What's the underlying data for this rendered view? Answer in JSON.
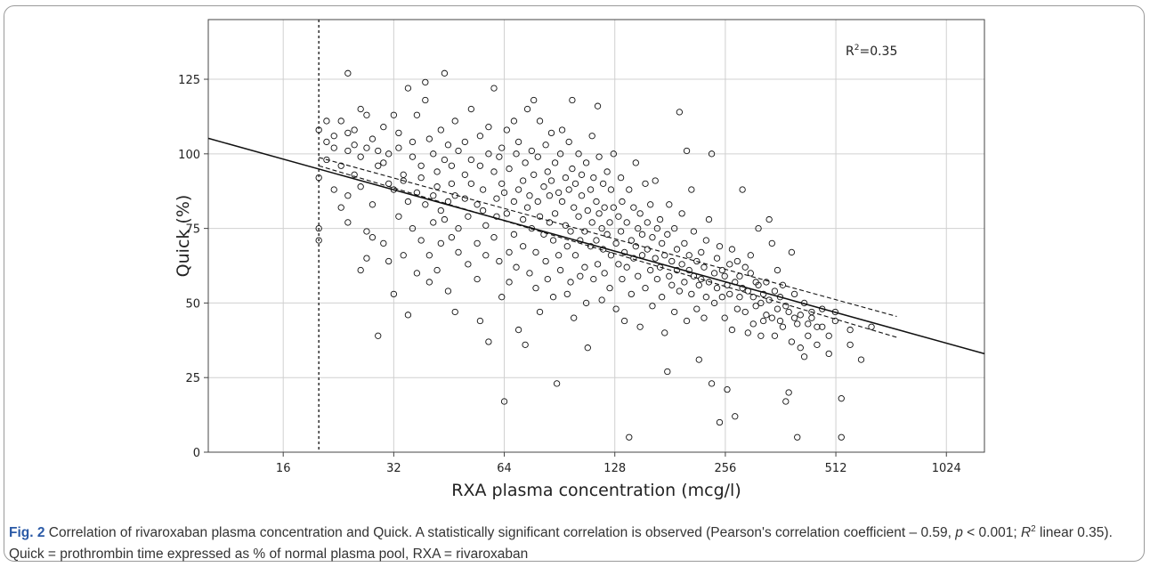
{
  "chart_data": {
    "type": "scatter",
    "xlabel": "RXA plasma concentration (mcg/l)",
    "ylabel": "Quick (%)",
    "x_scale": "log2",
    "xlim": [
      10,
      1300
    ],
    "ylim": [
      0,
      145
    ],
    "x_ticks": [
      16,
      32,
      64,
      128,
      256,
      512,
      1024
    ],
    "y_ticks": [
      0,
      25,
      50,
      75,
      100,
      125
    ],
    "grid": true,
    "annotation": "R² = 0.35",
    "threshold_line_x": 20,
    "regression": {
      "fit": [
        [
          10,
          105.2
        ],
        [
          1300,
          33.0
        ]
      ],
      "ci_upper": [
        [
          20,
          98.8
        ],
        [
          750,
          45.5
        ]
      ],
      "ci_lower": [
        [
          20,
          96.0
        ],
        [
          750,
          38.5
        ]
      ]
    },
    "points": [
      [
        20,
        108
      ],
      [
        20,
        92
      ],
      [
        20,
        75
      ],
      [
        20,
        71
      ],
      [
        21,
        104
      ],
      [
        21,
        98
      ],
      [
        21,
        111
      ],
      [
        22,
        102
      ],
      [
        22,
        106
      ],
      [
        22,
        88
      ],
      [
        23,
        111
      ],
      [
        23,
        96
      ],
      [
        23,
        82
      ],
      [
        24,
        107
      ],
      [
        24,
        127
      ],
      [
        24,
        101
      ],
      [
        24,
        86
      ],
      [
        24,
        77
      ],
      [
        25,
        103
      ],
      [
        25,
        93
      ],
      [
        25,
        108
      ],
      [
        26,
        99
      ],
      [
        26,
        89
      ],
      [
        26,
        61
      ],
      [
        26,
        115
      ],
      [
        27,
        113
      ],
      [
        27,
        102
      ],
      [
        27,
        74
      ],
      [
        27,
        65
      ],
      [
        28,
        105
      ],
      [
        28,
        83
      ],
      [
        28,
        72
      ],
      [
        29,
        39
      ],
      [
        29,
        96
      ],
      [
        29,
        101
      ],
      [
        30,
        109
      ],
      [
        30,
        97
      ],
      [
        30,
        70
      ],
      [
        31,
        90
      ],
      [
        31,
        100
      ],
      [
        31,
        64
      ],
      [
        32,
        113
      ],
      [
        32,
        88
      ],
      [
        32,
        53
      ],
      [
        33,
        102
      ],
      [
        33,
        79
      ],
      [
        33,
        107
      ],
      [
        34,
        93
      ],
      [
        34,
        66
      ],
      [
        34,
        91
      ],
      [
        35,
        122
      ],
      [
        35,
        84
      ],
      [
        35,
        46
      ],
      [
        36,
        99
      ],
      [
        36,
        75
      ],
      [
        36,
        104
      ],
      [
        37,
        87
      ],
      [
        37,
        60
      ],
      [
        37,
        113
      ],
      [
        38,
        96
      ],
      [
        38,
        92
      ],
      [
        38,
        71
      ],
      [
        39,
        124
      ],
      [
        39,
        118
      ],
      [
        39,
        83
      ],
      [
        40,
        105
      ],
      [
        40,
        66
      ],
      [
        40,
        57
      ],
      [
        41,
        86
      ],
      [
        41,
        100
      ],
      [
        41,
        77
      ],
      [
        42,
        61
      ],
      [
        42,
        89
      ],
      [
        42,
        94
      ],
      [
        43,
        108
      ],
      [
        43,
        81
      ],
      [
        43,
        70
      ],
      [
        44,
        127
      ],
      [
        44,
        98
      ],
      [
        44,
        78
      ],
      [
        45,
        103
      ],
      [
        45,
        84
      ],
      [
        45,
        54
      ],
      [
        46,
        90
      ],
      [
        46,
        96
      ],
      [
        46,
        72
      ],
      [
        47,
        47
      ],
      [
        47,
        111
      ],
      [
        47,
        86
      ],
      [
        48,
        101
      ],
      [
        48,
        75
      ],
      [
        48,
        67
      ],
      [
        50,
        93
      ],
      [
        50,
        85
      ],
      [
        50,
        104
      ],
      [
        51,
        63
      ],
      [
        51,
        79
      ],
      [
        52,
        115
      ],
      [
        52,
        90
      ],
      [
        52,
        98
      ],
      [
        54,
        70
      ],
      [
        54,
        83
      ],
      [
        54,
        58
      ],
      [
        55,
        106
      ],
      [
        55,
        96
      ],
      [
        55,
        44
      ],
      [
        56,
        81
      ],
      [
        56,
        88
      ],
      [
        57,
        76
      ],
      [
        57,
        66
      ],
      [
        58,
        100
      ],
      [
        58,
        109
      ],
      [
        58,
        37
      ],
      [
        60,
        122
      ],
      [
        60,
        94
      ],
      [
        60,
        72
      ],
      [
        61,
        85
      ],
      [
        61,
        79
      ],
      [
        62,
        64
      ],
      [
        62,
        99
      ],
      [
        63,
        102
      ],
      [
        63,
        90
      ],
      [
        63,
        52
      ],
      [
        64,
        17
      ],
      [
        64,
        87
      ],
      [
        65,
        80
      ],
      [
        65,
        108
      ],
      [
        66,
        67
      ],
      [
        66,
        95
      ],
      [
        66,
        57
      ],
      [
        68,
        111
      ],
      [
        68,
        84
      ],
      [
        68,
        73
      ],
      [
        69,
        100
      ],
      [
        69,
        62
      ],
      [
        70,
        88
      ],
      [
        70,
        104
      ],
      [
        70,
        41
      ],
      [
        72,
        91
      ],
      [
        72,
        78
      ],
      [
        72,
        69
      ],
      [
        73,
        36
      ],
      [
        73,
        97
      ],
      [
        74,
        115
      ],
      [
        74,
        82
      ],
      [
        75,
        86
      ],
      [
        75,
        60
      ],
      [
        76,
        101
      ],
      [
        76,
        75
      ],
      [
        77,
        118
      ],
      [
        77,
        93
      ],
      [
        78,
        67
      ],
      [
        78,
        55
      ],
      [
        79,
        84
      ],
      [
        79,
        99
      ],
      [
        80,
        111
      ],
      [
        80,
        79
      ],
      [
        80,
        47
      ],
      [
        82,
        89
      ],
      [
        82,
        73
      ],
      [
        83,
        103
      ],
      [
        83,
        64
      ],
      [
        84,
        94
      ],
      [
        84,
        58
      ],
      [
        85,
        86
      ],
      [
        85,
        77
      ],
      [
        86,
        107
      ],
      [
        86,
        91
      ],
      [
        87,
        71
      ],
      [
        87,
        52
      ],
      [
        88,
        80
      ],
      [
        88,
        97
      ],
      [
        89,
        23
      ],
      [
        90,
        87
      ],
      [
        90,
        66
      ],
      [
        91,
        100
      ],
      [
        91,
        61
      ],
      [
        92,
        84
      ],
      [
        92,
        108
      ],
      [
        94,
        76
      ],
      [
        94,
        92
      ],
      [
        95,
        69
      ],
      [
        95,
        53
      ],
      [
        96,
        88
      ],
      [
        96,
        104
      ],
      [
        97,
        74
      ],
      [
        97,
        57
      ],
      [
        98,
        95
      ],
      [
        98,
        118
      ],
      [
        99,
        82
      ],
      [
        99,
        45
      ],
      [
        100,
        90
      ],
      [
        100,
        66
      ],
      [
        102,
        79
      ],
      [
        102,
        100
      ],
      [
        103,
        71
      ],
      [
        103,
        59
      ],
      [
        104,
        86
      ],
      [
        104,
        93
      ],
      [
        106,
        74
      ],
      [
        106,
        62
      ],
      [
        107,
        97
      ],
      [
        107,
        50
      ],
      [
        108,
        81
      ],
      [
        108,
        35
      ],
      [
        110,
        88
      ],
      [
        110,
        69
      ],
      [
        111,
        106
      ],
      [
        111,
        77
      ],
      [
        112,
        58
      ],
      [
        112,
        92
      ],
      [
        114,
        84
      ],
      [
        114,
        71
      ],
      [
        115,
        116
      ],
      [
        115,
        63
      ],
      [
        116,
        80
      ],
      [
        116,
        99
      ],
      [
        118,
        75
      ],
      [
        118,
        51
      ],
      [
        119,
        90
      ],
      [
        119,
        68
      ],
      [
        120,
        82
      ],
      [
        120,
        60
      ],
      [
        122,
        94
      ],
      [
        122,
        73
      ],
      [
        124,
        77
      ],
      [
        124,
        55
      ],
      [
        125,
        88
      ],
      [
        125,
        66
      ],
      [
        127,
        82
      ],
      [
        127,
        100
      ],
      [
        129,
        70
      ],
      [
        129,
        48
      ],
      [
        131,
        79
      ],
      [
        131,
        63
      ],
      [
        133,
        74
      ],
      [
        133,
        92
      ],
      [
        134,
        58
      ],
      [
        134,
        84
      ],
      [
        136,
        67
      ],
      [
        136,
        44
      ],
      [
        138,
        77
      ],
      [
        138,
        62
      ],
      [
        140,
        5
      ],
      [
        140,
        88
      ],
      [
        142,
        71
      ],
      [
        142,
        53
      ],
      [
        144,
        82
      ],
      [
        144,
        65
      ],
      [
        146,
        97
      ],
      [
        146,
        69
      ],
      [
        148,
        75
      ],
      [
        148,
        59
      ],
      [
        150,
        80
      ],
      [
        150,
        42
      ],
      [
        152,
        66
      ],
      [
        152,
        73
      ],
      [
        155,
        90
      ],
      [
        155,
        55
      ],
      [
        157,
        68
      ],
      [
        157,
        77
      ],
      [
        160,
        61
      ],
      [
        160,
        83
      ],
      [
        162,
        72
      ],
      [
        162,
        49
      ],
      [
        165,
        91
      ],
      [
        165,
        65
      ],
      [
        167,
        58
      ],
      [
        167,
        75
      ],
      [
        170,
        78
      ],
      [
        170,
        62
      ],
      [
        172,
        52
      ],
      [
        172,
        70
      ],
      [
        175,
        40
      ],
      [
        175,
        66
      ],
      [
        178,
        27
      ],
      [
        178,
        73
      ],
      [
        180,
        59
      ],
      [
        180,
        83
      ],
      [
        183,
        64
      ],
      [
        183,
        56
      ],
      [
        186,
        75
      ],
      [
        186,
        47
      ],
      [
        189,
        61
      ],
      [
        189,
        68
      ],
      [
        192,
        114
      ],
      [
        192,
        54
      ],
      [
        195,
        63
      ],
      [
        195,
        80
      ],
      [
        198,
        57
      ],
      [
        198,
        70
      ],
      [
        201,
        101
      ],
      [
        201,
        44
      ],
      [
        204,
        61
      ],
      [
        204,
        66
      ],
      [
        207,
        88
      ],
      [
        207,
        53
      ],
      [
        210,
        59
      ],
      [
        210,
        74
      ],
      [
        214,
        64
      ],
      [
        214,
        48
      ],
      [
        217,
        56
      ],
      [
        217,
        31
      ],
      [
        220,
        67
      ],
      [
        220,
        58
      ],
      [
        224,
        62
      ],
      [
        224,
        45
      ],
      [
        227,
        71
      ],
      [
        227,
        52
      ],
      [
        231,
        57
      ],
      [
        231,
        78
      ],
      [
        235,
        100
      ],
      [
        235,
        23
      ],
      [
        239,
        60
      ],
      [
        239,
        50
      ],
      [
        243,
        55
      ],
      [
        243,
        65
      ],
      [
        247,
        10
      ],
      [
        247,
        69
      ],
      [
        251,
        52
      ],
      [
        251,
        61
      ],
      [
        255,
        59
      ],
      [
        255,
        45
      ],
      [
        259,
        56
      ],
      [
        259,
        21
      ],
      [
        263,
        63
      ],
      [
        263,
        53
      ],
      [
        267,
        68
      ],
      [
        267,
        41
      ],
      [
        272,
        57
      ],
      [
        272,
        12
      ],
      [
        276,
        64
      ],
      [
        276,
        48
      ],
      [
        280,
        52
      ],
      [
        280,
        59
      ],
      [
        285,
        55
      ],
      [
        285,
        88
      ],
      [
        290,
        47
      ],
      [
        290,
        62
      ],
      [
        295,
        54
      ],
      [
        295,
        40
      ],
      [
        300,
        60
      ],
      [
        300,
        66
      ],
      [
        305,
        52
      ],
      [
        305,
        43
      ],
      [
        310,
        57
      ],
      [
        310,
        49
      ],
      [
        315,
        75
      ],
      [
        315,
        56
      ],
      [
        320,
        50
      ],
      [
        320,
        39
      ],
      [
        325,
        44
      ],
      [
        325,
        53
      ],
      [
        331,
        57
      ],
      [
        331,
        46
      ],
      [
        337,
        78
      ],
      [
        337,
        51
      ],
      [
        343,
        45
      ],
      [
        343,
        70
      ],
      [
        349,
        54
      ],
      [
        349,
        39
      ],
      [
        355,
        48
      ],
      [
        355,
        61
      ],
      [
        361,
        52
      ],
      [
        361,
        44
      ],
      [
        367,
        56
      ],
      [
        367,
        42
      ],
      [
        374,
        17
      ],
      [
        374,
        49
      ],
      [
        381,
        20
      ],
      [
        381,
        47
      ],
      [
        388,
        37
      ],
      [
        388,
        67
      ],
      [
        395,
        53
      ],
      [
        395,
        45
      ],
      [
        402,
        5
      ],
      [
        402,
        43
      ],
      [
        410,
        46
      ],
      [
        410,
        35
      ],
      [
        420,
        50
      ],
      [
        420,
        32
      ],
      [
        430,
        43
      ],
      [
        430,
        39
      ],
      [
        440,
        47
      ],
      [
        440,
        45
      ],
      [
        455,
        36
      ],
      [
        455,
        42
      ],
      [
        470,
        48
      ],
      [
        470,
        42
      ],
      [
        490,
        33
      ],
      [
        490,
        39
      ],
      [
        510,
        47
      ],
      [
        510,
        44
      ],
      [
        530,
        18
      ],
      [
        530,
        5
      ],
      [
        560,
        41
      ],
      [
        560,
        36
      ],
      [
        600,
        31
      ],
      [
        640,
        42
      ]
    ]
  }
}
